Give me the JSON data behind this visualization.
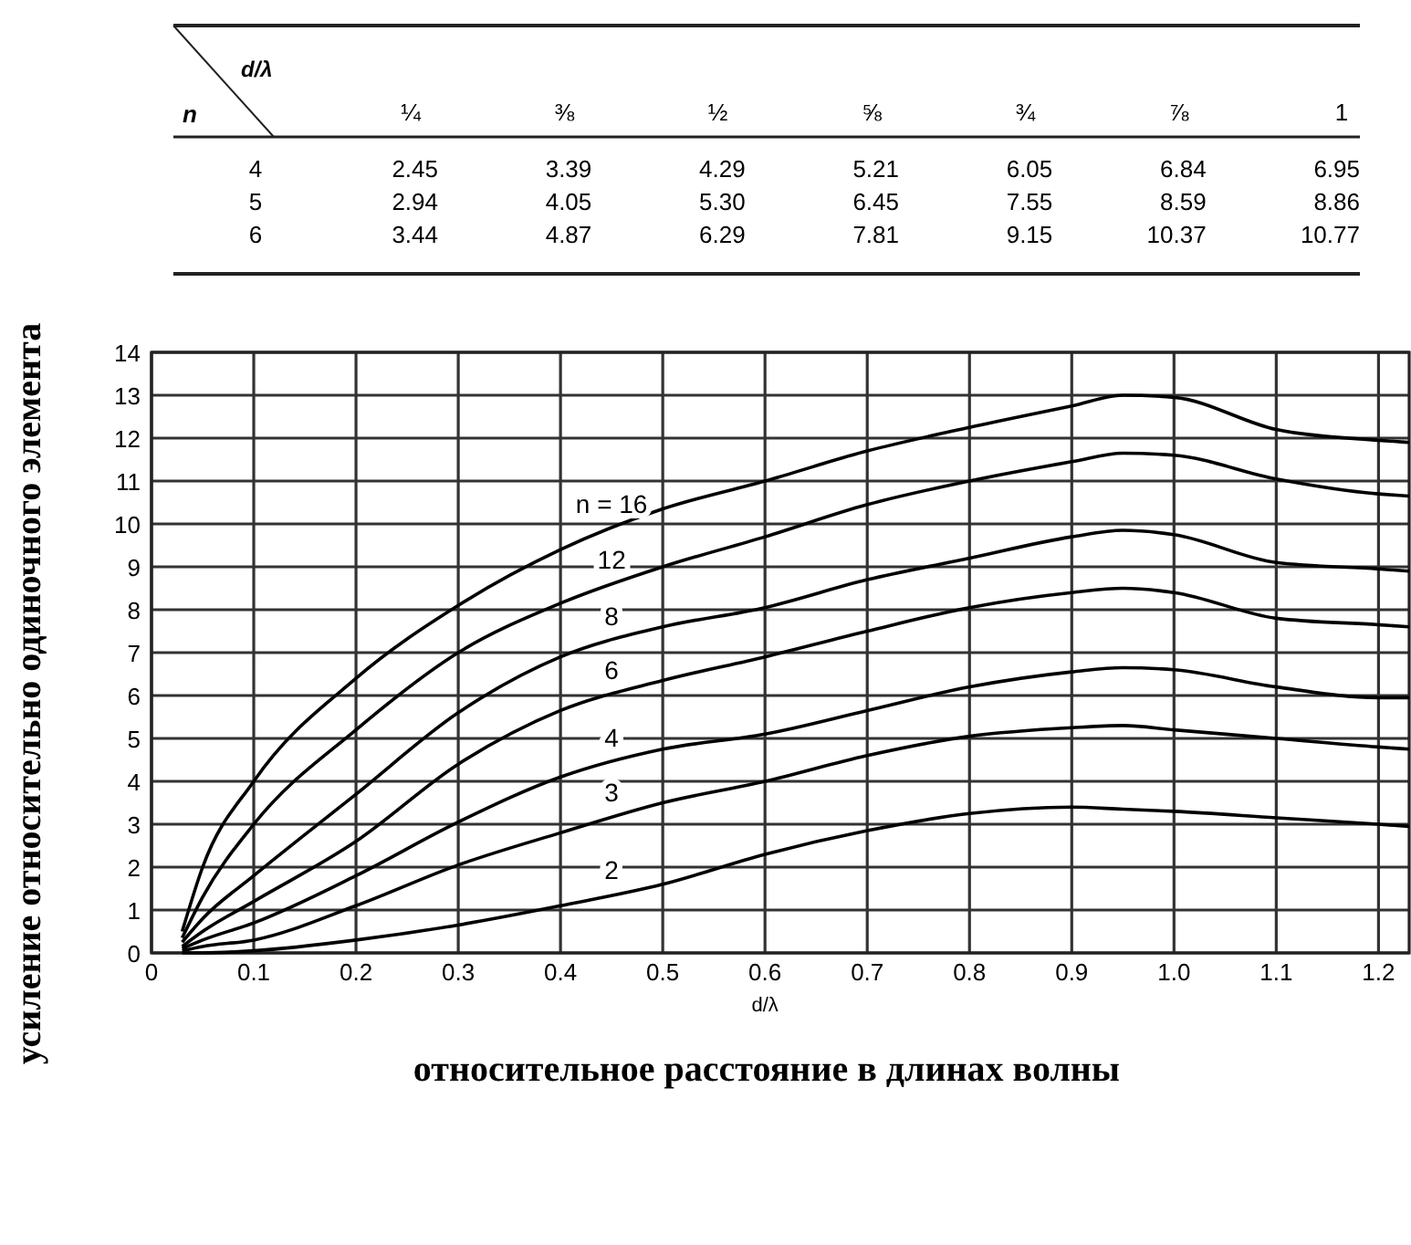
{
  "chart_data": [
    {
      "type": "heatmap",
      "xlabel": "d/λ",
      "ylabel": "n",
      "categories": [
        "¼",
        "⅜",
        "½",
        "⅝",
        "¾",
        "⅞",
        "1"
      ],
      "y_categories": [
        "4",
        "5",
        "6"
      ],
      "cells": [
        [
          2.45,
          3.39,
          4.29,
          5.21,
          6.05,
          6.84,
          6.95
        ],
        [
          2.94,
          4.05,
          5.3,
          6.45,
          7.55,
          8.59,
          8.86
        ],
        [
          3.44,
          4.87,
          6.29,
          7.81,
          9.15,
          10.37,
          10.77
        ]
      ],
      "cell_labels": [
        [
          "2.45",
          "3.39",
          "4.29",
          "5.21",
          "6.05",
          "6.84",
          "6.95"
        ],
        [
          "2.94",
          "4.05",
          "5.30",
          "6.45",
          "7.55",
          "8.59",
          "8.86"
        ],
        [
          "3.44",
          "4.87",
          "6.29",
          "7.81",
          "9.15",
          "10.37",
          "10.77"
        ]
      ],
      "data_labels": true
    },
    {
      "type": "line",
      "xlabel": "d/λ",
      "ylabel": "усиление относительно одиночного элемента",
      "annotations": [
        "относительное расстояние в длинах волны"
      ],
      "x": [
        0.03,
        0.05,
        0.1,
        0.2,
        0.3,
        0.4,
        0.5,
        0.6,
        0.7,
        0.8,
        0.9,
        0.95,
        1.0,
        1.1,
        1.2,
        1.23
      ],
      "series": [
        {
          "name": "n = 16",
          "color": "#000000",
          "values": [
            0.5,
            2.0,
            4.0,
            6.4,
            8.1,
            9.4,
            10.35,
            11.0,
            11.7,
            12.25,
            12.75,
            13.0,
            12.95,
            12.2,
            11.95,
            11.9
          ]
        },
        {
          "name": "12",
          "color": "#000000",
          "values": [
            0.35,
            1.3,
            3.0,
            5.2,
            7.0,
            8.15,
            9.0,
            9.7,
            10.45,
            11.0,
            11.45,
            11.65,
            11.6,
            11.05,
            10.7,
            10.65
          ]
        },
        {
          "name": "8",
          "color": "#000000",
          "values": [
            0.25,
            0.8,
            1.8,
            3.7,
            5.6,
            6.9,
            7.6,
            8.05,
            8.7,
            9.2,
            9.7,
            9.85,
            9.75,
            9.1,
            8.95,
            8.9
          ]
        },
        {
          "name": "6",
          "color": "#000000",
          "values": [
            0.15,
            0.5,
            1.2,
            2.6,
            4.4,
            5.65,
            6.35,
            6.9,
            7.5,
            8.05,
            8.4,
            8.5,
            8.4,
            7.8,
            7.65,
            7.6
          ]
        },
        {
          "name": "4",
          "color": "#000000",
          "values": [
            0.1,
            0.3,
            0.7,
            1.8,
            3.05,
            4.1,
            4.75,
            5.1,
            5.65,
            6.2,
            6.55,
            6.65,
            6.6,
            6.2,
            5.95,
            5.95
          ]
        },
        {
          "name": "3",
          "color": "#000000",
          "values": [
            0.05,
            0.15,
            0.3,
            1.1,
            2.05,
            2.8,
            3.5,
            4.0,
            4.6,
            5.05,
            5.25,
            5.3,
            5.2,
            5.0,
            4.8,
            4.75
          ]
        },
        {
          "name": "2",
          "color": "#000000",
          "values": [
            0.0,
            0.0,
            0.05,
            0.3,
            0.65,
            1.1,
            1.6,
            2.3,
            2.85,
            3.25,
            3.4,
            3.35,
            3.3,
            3.15,
            3.0,
            2.95
          ]
        }
      ],
      "xlim": [
        0,
        1.23
      ],
      "xticks": [
        0,
        0.1,
        0.2,
        0.3,
        0.4,
        0.5,
        0.6,
        0.7,
        0.8,
        0.9,
        {
          "value": 1,
          "label": "1.0"
        },
        1.1,
        1.2
      ],
      "ylim": [
        0,
        14
      ],
      "yticks": [
        0,
        1,
        2,
        3,
        4,
        5,
        6,
        7,
        8,
        9,
        10,
        11,
        12,
        13,
        14
      ],
      "grid": true,
      "legend": false
    }
  ]
}
